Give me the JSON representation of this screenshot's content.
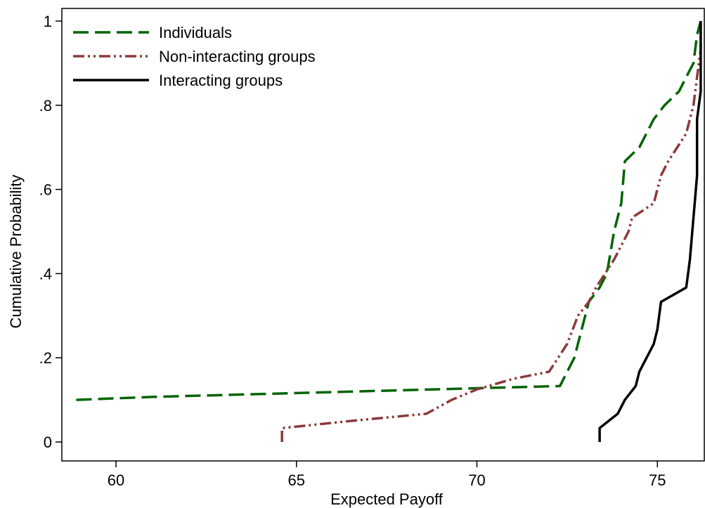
{
  "chart_data": {
    "type": "line",
    "title": "",
    "xlabel": "Expected Payoff",
    "ylabel": "Cumulative Probability",
    "xlim": [
      58.5,
      76.3
    ],
    "ylim": [
      -0.045,
      1.03
    ],
    "x_ticks": [
      60,
      65,
      70,
      75
    ],
    "x_tick_labels": [
      "60",
      "65",
      "70",
      "75"
    ],
    "y_ticks": [
      0,
      0.2,
      0.4,
      0.6,
      0.8,
      1
    ],
    "y_tick_labels": [
      "0",
      ".2",
      ".4",
      ".6",
      ".8",
      "1"
    ],
    "grid": false,
    "legend_position": "top-left",
    "series": [
      {
        "name": "Individuals",
        "color": "#006400",
        "style": "dashed",
        "points": [
          [
            58.9,
            0.1
          ],
          [
            61.0,
            0.107
          ],
          [
            72.3,
            0.133
          ],
          [
            72.7,
            0.2
          ],
          [
            73.0,
            0.3
          ],
          [
            73.1,
            0.333
          ],
          [
            73.4,
            0.367
          ],
          [
            73.6,
            0.4
          ],
          [
            73.8,
            0.5
          ],
          [
            74.0,
            0.567
          ],
          [
            74.1,
            0.667
          ],
          [
            74.5,
            0.7
          ],
          [
            74.9,
            0.767
          ],
          [
            75.2,
            0.8
          ],
          [
            75.6,
            0.833
          ],
          [
            75.8,
            0.867
          ],
          [
            76.0,
            0.9
          ],
          [
            76.1,
            0.967
          ],
          [
            76.2,
            1.0
          ]
        ]
      },
      {
        "name": "Non-interacting groups",
        "color": "#8B3A3A",
        "style": "dash-dot-dot",
        "points": [
          [
            64.6,
            0.0
          ],
          [
            64.6,
            0.033
          ],
          [
            66.5,
            0.05
          ],
          [
            68.6,
            0.067
          ],
          [
            69.3,
            0.1
          ],
          [
            70.0,
            0.125
          ],
          [
            71.0,
            0.15
          ],
          [
            72.0,
            0.167
          ],
          [
            72.5,
            0.233
          ],
          [
            72.8,
            0.3
          ],
          [
            73.1,
            0.333
          ],
          [
            73.3,
            0.367
          ],
          [
            73.8,
            0.433
          ],
          [
            74.2,
            0.5
          ],
          [
            74.3,
            0.533
          ],
          [
            74.9,
            0.567
          ],
          [
            75.1,
            0.633
          ],
          [
            75.3,
            0.667
          ],
          [
            75.8,
            0.733
          ],
          [
            76.0,
            0.8
          ],
          [
            76.1,
            0.867
          ],
          [
            76.2,
            0.933
          ],
          [
            76.2,
            1.0
          ]
        ]
      },
      {
        "name": "Interacting groups",
        "color": "#000000",
        "style": "solid",
        "points": [
          [
            73.4,
            0.0
          ],
          [
            73.4,
            0.033
          ],
          [
            73.9,
            0.067
          ],
          [
            74.1,
            0.1
          ],
          [
            74.4,
            0.133
          ],
          [
            74.5,
            0.167
          ],
          [
            74.9,
            0.233
          ],
          [
            75.0,
            0.267
          ],
          [
            75.1,
            0.333
          ],
          [
            75.8,
            0.367
          ],
          [
            75.9,
            0.433
          ],
          [
            76.0,
            0.533
          ],
          [
            76.1,
            0.633
          ],
          [
            76.1,
            0.767
          ],
          [
            76.2,
            0.833
          ],
          [
            76.2,
            1.0
          ]
        ]
      }
    ]
  }
}
